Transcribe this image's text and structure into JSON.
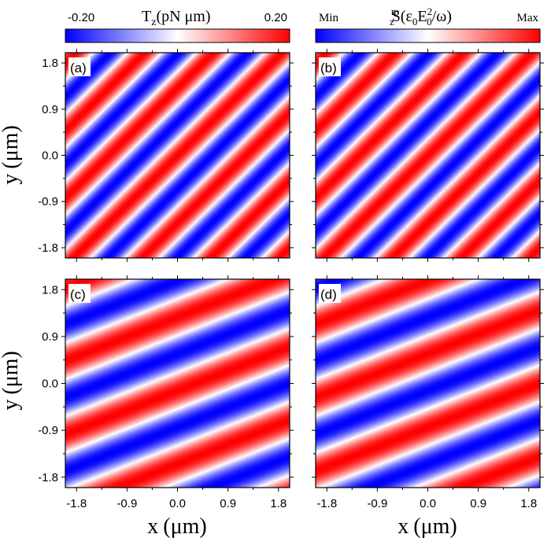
{
  "chart_data": [
    {
      "type": "heatmap",
      "panel_label": "(a)",
      "xlim": [
        -2.0,
        2.0
      ],
      "ylim": [
        -2.0,
        2.0
      ],
      "period_um": 0.9,
      "stripe_angle_deg": 42,
      "phase": 0.0
    },
    {
      "type": "heatmap",
      "panel_label": "(b)",
      "xlim": [
        -2.0,
        2.0
      ],
      "ylim": [
        -2.0,
        2.0
      ],
      "period_um": 0.9,
      "stripe_angle_deg": 42,
      "phase": 0.0
    },
    {
      "type": "heatmap",
      "panel_label": "(c)",
      "xlim": [
        -2.0,
        2.0
      ],
      "ylim": [
        -2.0,
        2.0
      ],
      "period_um": 1.3,
      "stripe_angle_deg": 20,
      "phase": 0.6
    },
    {
      "type": "heatmap",
      "panel_label": "(d)",
      "xlim": [
        -2.0,
        2.0
      ],
      "ylim": [
        -2.0,
        2.0
      ],
      "period_um": 1.3,
      "stripe_angle_deg": 20,
      "phase": 3.74
    }
  ],
  "axes": {
    "x_ticks": [
      "-1.8",
      "-0.9",
      "0.0",
      "0.9",
      "1.8"
    ],
    "y_ticks": [
      "1.8",
      "0.9",
      "0.0",
      "-0.9",
      "-1.8"
    ],
    "x_tick_values": [
      -1.8,
      -0.9,
      0.0,
      0.9,
      1.8
    ],
    "y_tick_values": [
      1.8,
      0.9,
      0.0,
      -0.9,
      -1.8
    ],
    "xlabel_var": "x",
    "xlabel_unit": "(μm)",
    "ylabel_var": "y",
    "ylabel_unit": "(μm)"
  },
  "colorbars": {
    "left": {
      "min_label": "-0.20",
      "max_label": "0.20",
      "title_main": "T",
      "title_sub": "z",
      "title_rest": "(pN μm)"
    },
    "right": {
      "min_label": "Min",
      "max_label": "Max",
      "title_main": "S",
      "title_sup": "m",
      "title_sub": "z",
      "title_open": "(ε",
      "title_sub2": "0",
      "title_E": "E",
      "title_sub3": "0",
      "title_sup2": "2",
      "title_close": "/ω)"
    }
  },
  "colors": {
    "low": "#0000ff",
    "mid": "#ffffff",
    "high": "#ff0000"
  }
}
